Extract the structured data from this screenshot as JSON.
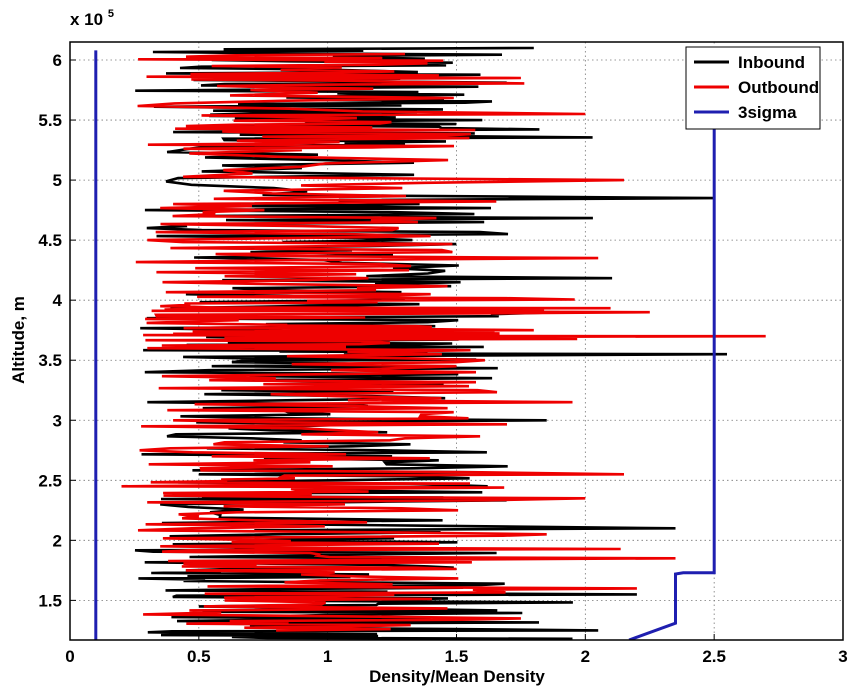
{
  "chart_data": {
    "type": "line",
    "orientation": "profile (x = density ratio, y = altitude)",
    "title": "",
    "xlabel": "Density/Mean Density",
    "ylabel": "Altitude, m",
    "y_multiplier_label": "x 10",
    "y_multiplier_exponent": "5",
    "xlim": [
      0,
      3
    ],
    "ylim": [
      1.17,
      6.15
    ],
    "y_units_scale": 100000,
    "grid": true,
    "legend_position": "top-right",
    "x_ticks": [
      0,
      0.5,
      1,
      1.5,
      2,
      2.5,
      3
    ],
    "x_tick_labels": [
      "0",
      "0.5",
      "1",
      "1.5",
      "2",
      "2.5",
      "3"
    ],
    "y_ticks": [
      1.5,
      2,
      2.5,
      3,
      3.5,
      4,
      4.5,
      5,
      5.5,
      6
    ],
    "y_tick_labels": [
      "1.5",
      "2",
      "2.5",
      "3",
      "3.5",
      "4",
      "4.5",
      "5",
      "5.5",
      "6"
    ],
    "series": [
      {
        "name": "Inbound",
        "color": "#000000",
        "description": "noisy profile, values mostly 0.3-1.9",
        "x": [
          1.8,
          0.55,
          1.35,
          0.6,
          1.1,
          0.75,
          1.6,
          0.4,
          1.3,
          0.9,
          2.5,
          0.5,
          1.7,
          0.7,
          1.15,
          0.45,
          1.9,
          0.8,
          1.2,
          0.6,
          2.55,
          0.55,
          1.45,
          0.3,
          1.85,
          0.7,
          1.25,
          0.5,
          1.6,
          0.35,
          2.35,
          0.65,
          1.5,
          0.45,
          1.05,
          2.2,
          0.5,
          1.4,
          2.05,
          1.95
        ],
        "y": [
          6.1,
          6.0,
          5.9,
          5.8,
          5.7,
          5.6,
          5.5,
          5.4,
          5.3,
          5.1,
          4.85,
          4.7,
          4.55,
          4.4,
          4.2,
          4.05,
          3.9,
          3.75,
          3.65,
          3.6,
          3.55,
          3.45,
          3.3,
          3.15,
          3.0,
          2.85,
          2.7,
          2.55,
          2.4,
          2.3,
          2.1,
          1.95,
          1.85,
          1.75,
          1.65,
          1.55,
          1.45,
          1.35,
          1.25,
          1.18
        ]
      },
      {
        "name": "Outbound",
        "color": "#ee0000",
        "description": "noisy profile, values mostly 0.2-2.2",
        "x": [
          1.3,
          0.55,
          1.75,
          0.7,
          2.0,
          0.45,
          1.55,
          0.9,
          2.15,
          0.4,
          1.35,
          0.3,
          2.05,
          0.6,
          1.4,
          0.35,
          2.25,
          0.65,
          1.8,
          0.4,
          2.7,
          0.3,
          1.5,
          0.75,
          1.95,
          0.4,
          1.3,
          0.55,
          2.15,
          0.2,
          2.0,
          0.5,
          1.85,
          0.35,
          2.35,
          0.45,
          2.2,
          0.6,
          1.75,
          0.8
        ],
        "y": [
          6.05,
          5.95,
          5.85,
          5.75,
          5.55,
          5.45,
          5.35,
          5.25,
          5.0,
          4.8,
          4.65,
          4.5,
          4.35,
          4.2,
          4.05,
          3.95,
          3.9,
          3.8,
          3.75,
          3.72,
          3.7,
          3.6,
          3.45,
          3.3,
          3.15,
          3.0,
          2.85,
          2.7,
          2.55,
          2.45,
          2.35,
          2.2,
          2.05,
          1.95,
          1.85,
          1.75,
          1.6,
          1.5,
          1.35,
          1.25
        ]
      },
      {
        "name": "3sigma",
        "color": "#1f1fb0",
        "description": "lower and upper 3-sigma envelope",
        "segments": [
          {
            "x": [
              0.1,
              0.1
            ],
            "y": [
              1.17,
              6.08
            ]
          },
          {
            "x": [
              2.17,
              2.35,
              2.35,
              2.38,
              2.5,
              2.5
            ],
            "y": [
              1.17,
              1.31,
              1.72,
              1.73,
              1.73,
              5.5
            ]
          }
        ]
      }
    ]
  }
}
